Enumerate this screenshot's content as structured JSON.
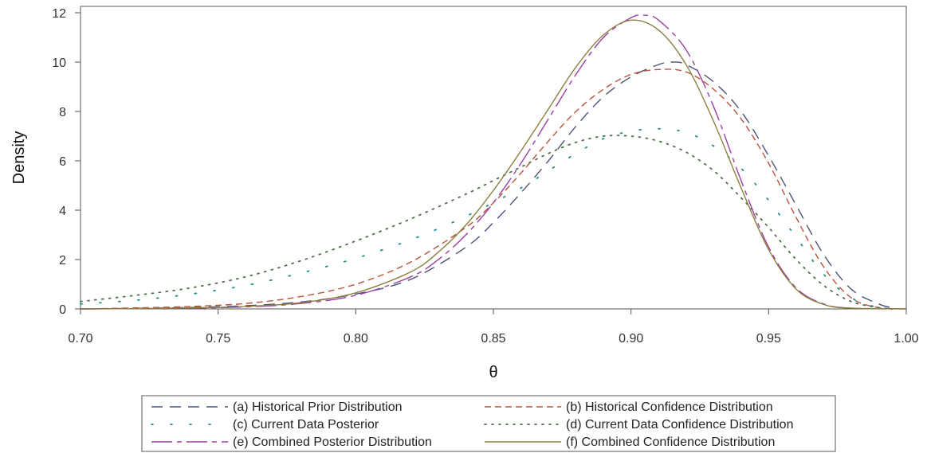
{
  "chart_data": {
    "type": "line",
    "title": "",
    "xlabel": "θ",
    "ylabel": "Density",
    "xlim": [
      0.7,
      1.0
    ],
    "ylim": [
      0,
      12
    ],
    "xticks": [
      "0.70",
      "0.75",
      "0.80",
      "0.85",
      "0.90",
      "0.95",
      "1.00"
    ],
    "yticks": [
      "0",
      "2",
      "4",
      "6",
      "8",
      "10",
      "12"
    ],
    "grid": false,
    "legend_position": "bottom",
    "series": [
      {
        "name": "(a) Historical Prior Distribution",
        "color": "#4a5478",
        "style": "long-dash",
        "x": [
          0.7,
          0.72,
          0.74,
          0.76,
          0.78,
          0.8,
          0.82,
          0.84,
          0.85,
          0.86,
          0.87,
          0.88,
          0.89,
          0.9,
          0.91,
          0.915,
          0.92,
          0.93,
          0.94,
          0.95,
          0.96,
          0.97,
          0.98,
          0.99,
          0.995
        ],
        "y": [
          0.0,
          0.02,
          0.06,
          0.13,
          0.28,
          0.6,
          1.2,
          2.5,
          3.5,
          4.7,
          6.0,
          7.4,
          8.6,
          9.4,
          9.9,
          10.0,
          9.9,
          9.2,
          8.0,
          6.2,
          4.2,
          2.2,
          0.8,
          0.2,
          0.05
        ]
      },
      {
        "name": "(b) Historical Confidence Distribution",
        "color": "#b8543c",
        "style": "dash",
        "x": [
          0.7,
          0.72,
          0.74,
          0.76,
          0.78,
          0.8,
          0.82,
          0.84,
          0.85,
          0.86,
          0.87,
          0.88,
          0.89,
          0.9,
          0.91,
          0.92,
          0.93,
          0.94,
          0.95,
          0.96,
          0.97,
          0.98,
          0.99,
          1.0
        ],
        "y": [
          0.0,
          0.04,
          0.1,
          0.22,
          0.5,
          1.0,
          1.9,
          3.3,
          4.3,
          5.5,
          6.8,
          8.0,
          8.9,
          9.5,
          9.7,
          9.6,
          8.9,
          7.7,
          5.9,
          3.7,
          1.7,
          0.45,
          0.05,
          0.0
        ]
      },
      {
        "name": "(c) Current Data Posterior",
        "color": "#1f8f8a",
        "style": "sparse-dot",
        "x": [
          0.7,
          0.72,
          0.74,
          0.76,
          0.78,
          0.8,
          0.82,
          0.84,
          0.86,
          0.87,
          0.88,
          0.89,
          0.9,
          0.91,
          0.92,
          0.93,
          0.94,
          0.95,
          0.96,
          0.97,
          0.98,
          0.99,
          0.995
        ],
        "y": [
          0.2,
          0.35,
          0.6,
          0.95,
          1.45,
          2.05,
          2.8,
          3.75,
          4.9,
          5.6,
          6.3,
          6.9,
          7.2,
          7.3,
          7.15,
          6.6,
          5.7,
          4.4,
          2.9,
          1.4,
          0.45,
          0.05,
          0.0
        ]
      },
      {
        "name": "(d) Current Data Confidence Distribution",
        "color": "#4f6f4a",
        "style": "dot",
        "x": [
          0.7,
          0.72,
          0.74,
          0.76,
          0.78,
          0.8,
          0.82,
          0.84,
          0.85,
          0.86,
          0.87,
          0.88,
          0.89,
          0.9,
          0.91,
          0.92,
          0.93,
          0.94,
          0.95,
          0.96,
          0.97,
          0.98,
          0.99,
          0.995
        ],
        "y": [
          0.3,
          0.55,
          0.85,
          1.3,
          1.95,
          2.75,
          3.65,
          4.65,
          5.2,
          5.75,
          6.3,
          6.75,
          7.0,
          7.0,
          6.8,
          6.35,
          5.6,
          4.5,
          3.3,
          2.0,
          0.95,
          0.3,
          0.05,
          0.0
        ]
      },
      {
        "name": "(e) Combined Posterior Distribution",
        "color": "#9a3fa3",
        "style": "long-dash-dot",
        "x": [
          0.7,
          0.72,
          0.74,
          0.76,
          0.78,
          0.8,
          0.82,
          0.83,
          0.84,
          0.85,
          0.86,
          0.87,
          0.88,
          0.89,
          0.9,
          0.905,
          0.91,
          0.92,
          0.93,
          0.94,
          0.95,
          0.96,
          0.97,
          0.98,
          1.0
        ],
        "y": [
          0.0,
          0.01,
          0.03,
          0.08,
          0.22,
          0.55,
          1.3,
          2.0,
          3.0,
          4.3,
          5.9,
          7.7,
          9.5,
          11.0,
          11.8,
          11.9,
          11.7,
          10.5,
          8.2,
          5.2,
          2.5,
          0.85,
          0.2,
          0.03,
          0.0
        ]
      },
      {
        "name": "(f) Combined Confidence Distribution",
        "color": "#8c8040",
        "style": "solid",
        "x": [
          0.7,
          0.72,
          0.74,
          0.76,
          0.78,
          0.8,
          0.82,
          0.83,
          0.84,
          0.85,
          0.86,
          0.87,
          0.88,
          0.89,
          0.9,
          0.91,
          0.92,
          0.93,
          0.94,
          0.95,
          0.96,
          0.97,
          0.98,
          1.0
        ],
        "y": [
          0.0,
          0.01,
          0.04,
          0.1,
          0.25,
          0.65,
          1.5,
          2.3,
          3.4,
          4.8,
          6.4,
          8.1,
          9.8,
          11.1,
          11.7,
          11.3,
          9.9,
          7.6,
          4.9,
          2.4,
          0.8,
          0.18,
          0.03,
          0.0
        ]
      }
    ]
  }
}
